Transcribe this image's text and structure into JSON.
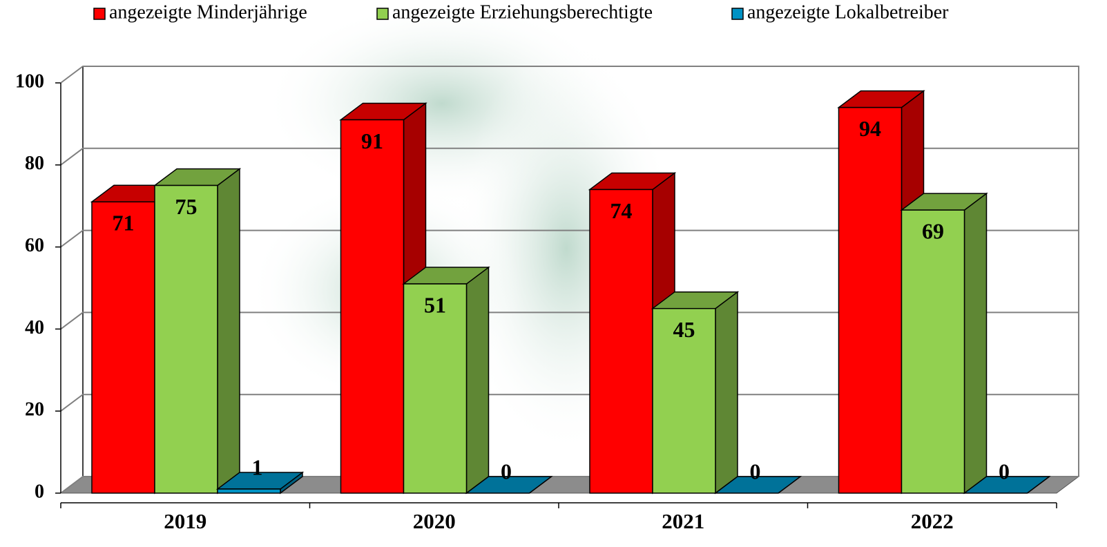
{
  "chart_data": {
    "type": "bar3d",
    "categories": [
      "2019",
      "2020",
      "2021",
      "2022"
    ],
    "series": [
      {
        "name": "angezeigte Minderjährige",
        "color": "#ff0000",
        "values": [
          71,
          91,
          74,
          94
        ]
      },
      {
        "name": "angezeigte Erziehungsberechtigte",
        "color": "#92d050",
        "values": [
          75,
          51,
          45,
          69
        ]
      },
      {
        "name": "angezeigte Lokalbetreiber",
        "color": "#0092c4",
        "values": [
          1,
          0,
          0,
          0
        ]
      }
    ],
    "ylim": [
      0,
      100
    ],
    "yticks": [
      0,
      20,
      40,
      60,
      80,
      100
    ],
    "grid": true,
    "legend": "top"
  }
}
